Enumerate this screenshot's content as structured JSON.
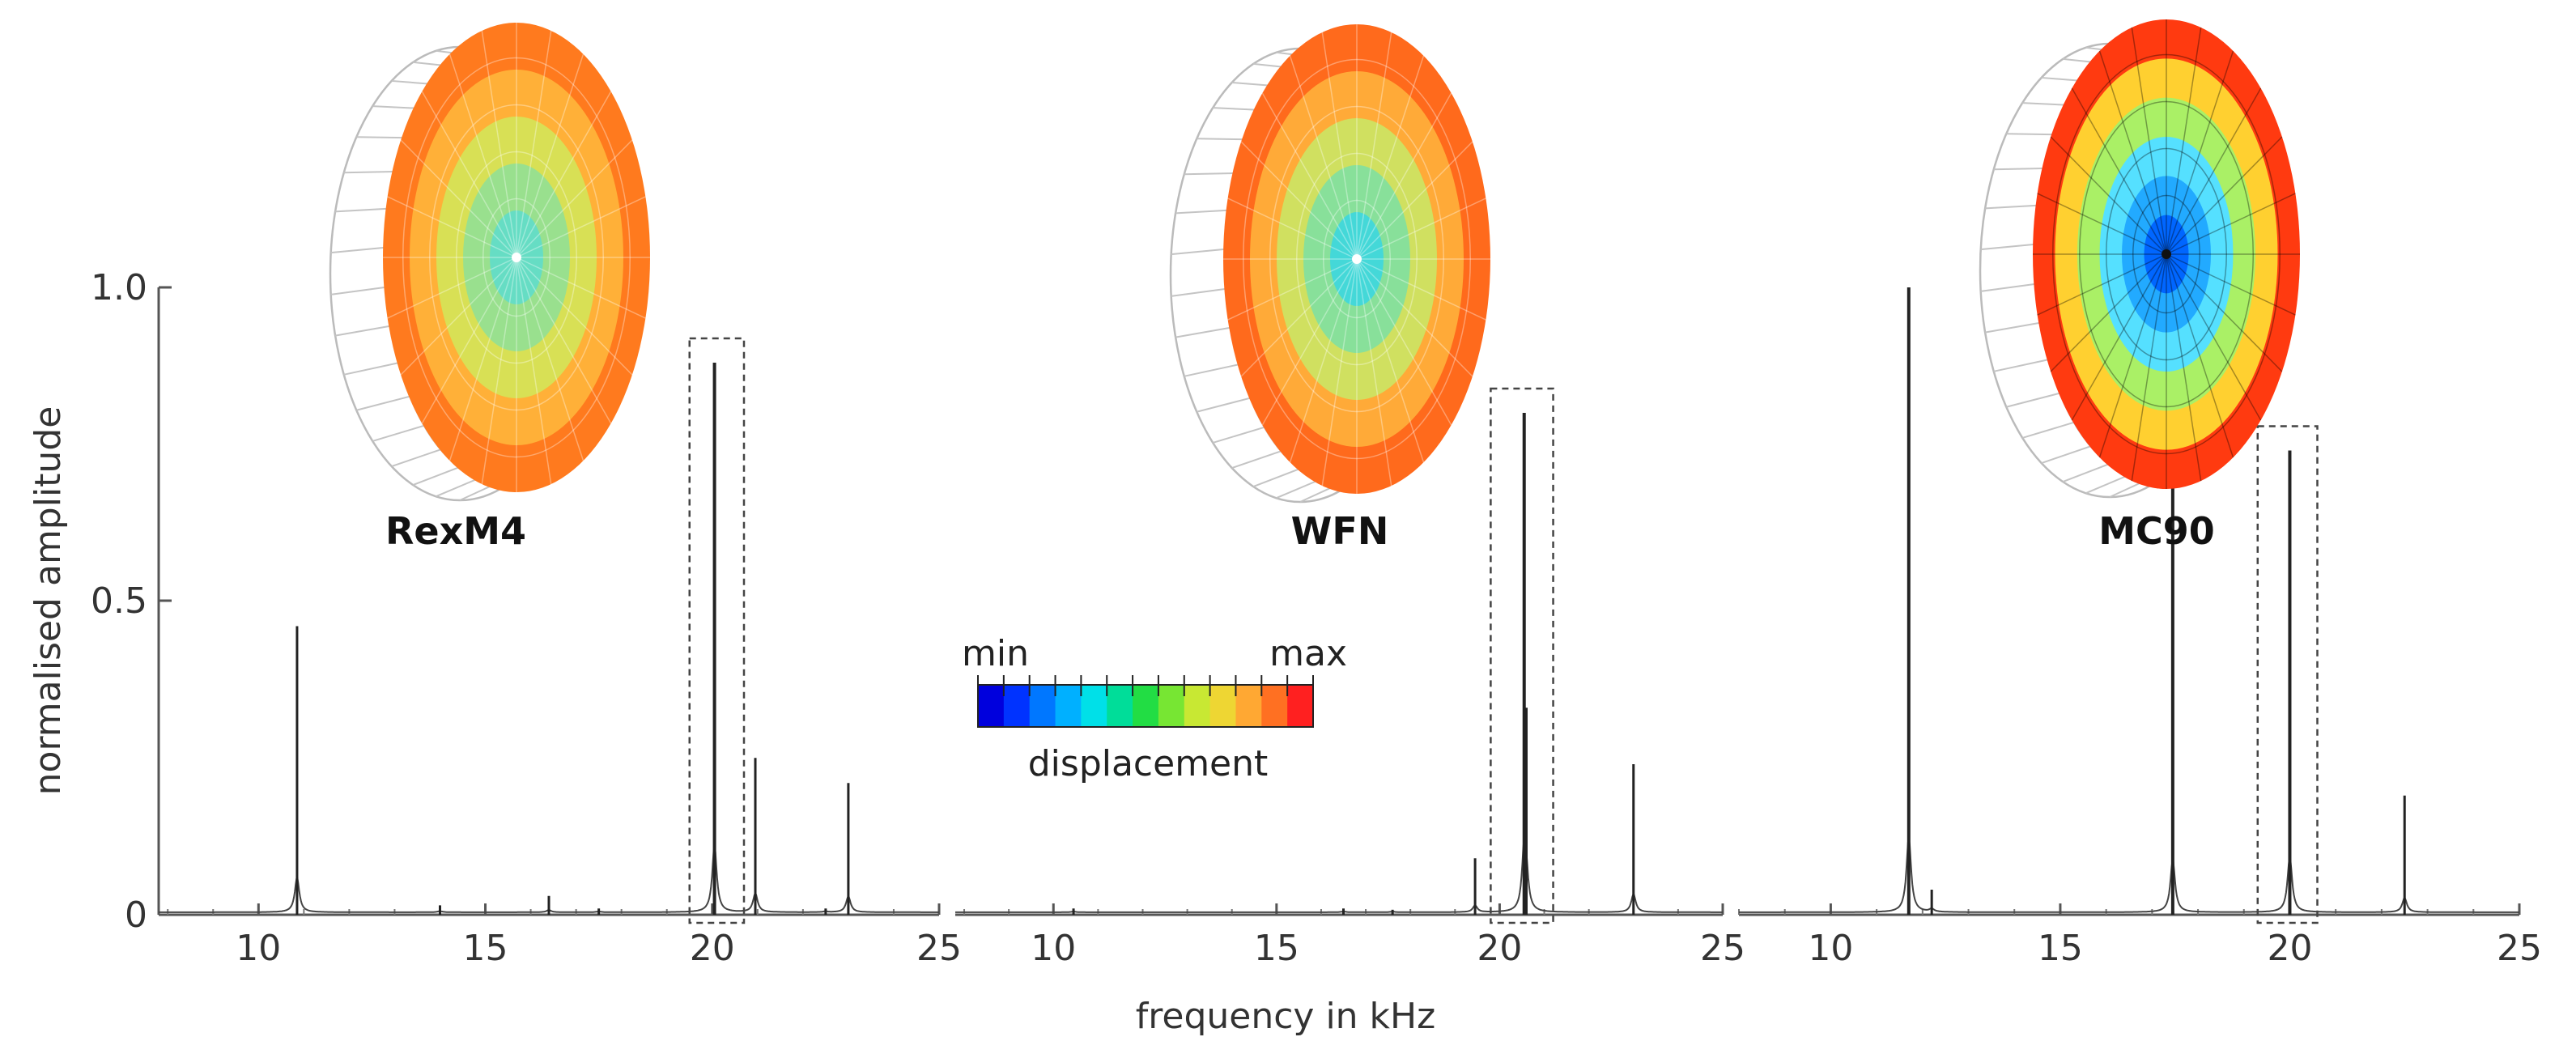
{
  "chart_data": {
    "type": "line",
    "ylabel": "normalised amplitude",
    "xlabel": "frequency in kHz",
    "y_ticks": [
      "0",
      "0.5",
      "1.0"
    ],
    "ylim": [
      0,
      1.0
    ],
    "colorbar": {
      "min_label": "min",
      "max_label": "max",
      "title": "displacement",
      "colors": [
        "#0000dd",
        "#0033ff",
        "#0077ff",
        "#00b0ff",
        "#00e0e8",
        "#00dd99",
        "#22dd44",
        "#77e633",
        "#c8e833",
        "#eed633",
        "#ffa833",
        "#ff7022",
        "#ff2020"
      ]
    },
    "panels": [
      {
        "name": "RexM4",
        "x_ticks": [
          "10",
          "15",
          "20",
          "25"
        ],
        "xlim": [
          7.8,
          25
        ],
        "highlight_range": [
          19.5,
          20.7
        ],
        "peaks": [
          {
            "f": 10.85,
            "a": 0.46
          },
          {
            "f": 14.0,
            "a": 0.015
          },
          {
            "f": 16.4,
            "a": 0.03
          },
          {
            "f": 17.5,
            "a": 0.01
          },
          {
            "f": 20.05,
            "a": 0.88
          },
          {
            "f": 20.95,
            "a": 0.25
          },
          {
            "f": 22.5,
            "a": 0.01
          },
          {
            "f": 23.0,
            "a": 0.21
          }
        ],
        "mode_shape": {
          "scheme": "low-contrast",
          "colors": [
            "#66ddc4",
            "#99e08e",
            "#d8e055",
            "#ffb038",
            "#ff7a1e"
          ]
        }
      },
      {
        "name": "WFN",
        "x_ticks": [
          "10",
          "15",
          "20",
          "25"
        ],
        "xlim": [
          7.8,
          25
        ],
        "highlight_range": [
          19.8,
          21.2
        ],
        "peaks": [
          {
            "f": 10.45,
            "a": 0.01
          },
          {
            "f": 16.5,
            "a": 0.01
          },
          {
            "f": 17.6,
            "a": 0.008
          },
          {
            "f": 19.45,
            "a": 0.09
          },
          {
            "f": 20.55,
            "a": 0.8
          },
          {
            "f": 20.6,
            "a": 0.33
          },
          {
            "f": 23.0,
            "a": 0.24
          }
        ],
        "mode_shape": {
          "scheme": "low-contrast",
          "colors": [
            "#44d8d8",
            "#88e09a",
            "#d0e060",
            "#ffaa38",
            "#ff6a1c"
          ]
        }
      },
      {
        "name": "MC90",
        "x_ticks": [
          "10",
          "15",
          "20",
          "25"
        ],
        "xlim": [
          8.0,
          25
        ],
        "highlight_range": [
          19.3,
          20.6
        ],
        "peaks": [
          {
            "f": 11.7,
            "a": 1.0
          },
          {
            "f": 12.2,
            "a": 0.04
          },
          {
            "f": 17.45,
            "a": 0.7
          },
          {
            "f": 20.0,
            "a": 0.74
          },
          {
            "f": 22.5,
            "a": 0.19
          }
        ],
        "mode_shape": {
          "scheme": "high-contrast",
          "colors": [
            "#0066ff",
            "#22aaff",
            "#55e0ff",
            "#aaf066",
            "#ffd030",
            "#ff3a10"
          ]
        }
      }
    ]
  }
}
